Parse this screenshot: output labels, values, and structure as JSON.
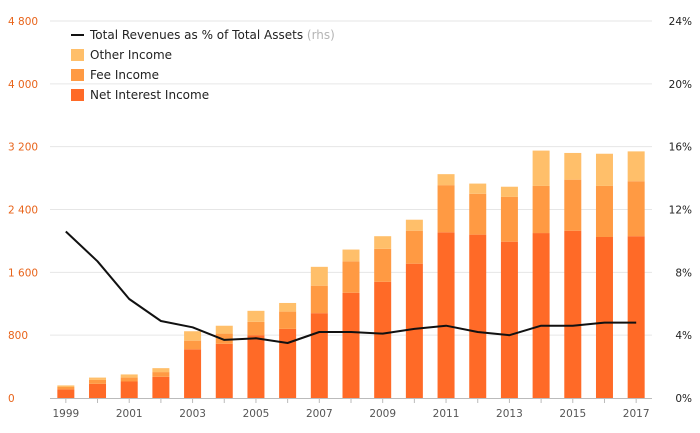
{
  "chart_data": {
    "type": "bar",
    "subtype": "stacked-bar-with-line",
    "x": [
      "1999",
      "2000",
      "2001",
      "2002",
      "2003",
      "2004",
      "2005",
      "2006",
      "2007",
      "2008",
      "2009",
      "2010",
      "2011",
      "2012",
      "2013",
      "2014",
      "2015",
      "2016",
      "2017"
    ],
    "x_tick_labels": [
      "1999",
      "2001",
      "2003",
      "2005",
      "2007",
      "2009",
      "2011",
      "2013",
      "2015",
      "2017"
    ],
    "series": [
      {
        "name": "Net Interest Income",
        "color": "#ff6a27",
        "axis": "left",
        "values": [
          110,
          180,
          210,
          270,
          620,
          690,
          800,
          880,
          1080,
          1340,
          1480,
          1710,
          2110,
          2080,
          1990,
          2100,
          2130,
          2050,
          2060
        ]
      },
      {
        "name": "Fee Income",
        "color": "#ff9a43",
        "axis": "left",
        "values": [
          30,
          50,
          50,
          60,
          110,
          130,
          170,
          220,
          350,
          400,
          420,
          420,
          600,
          520,
          570,
          600,
          650,
          650,
          700
        ]
      },
      {
        "name": "Other Income",
        "color": "#ffbf6a",
        "axis": "left",
        "values": [
          20,
          30,
          40,
          50,
          120,
          100,
          140,
          110,
          240,
          150,
          160,
          140,
          140,
          130,
          130,
          450,
          340,
          410,
          380
        ]
      },
      {
        "name": "Total Revenues as % of Total Assets",
        "name_suffix": "(rhs)",
        "type": "line",
        "color": "#111111",
        "axis": "right",
        "unit": "%",
        "values": [
          10.6,
          8.7,
          6.3,
          4.9,
          4.5,
          3.7,
          3.8,
          3.5,
          4.2,
          4.2,
          4.1,
          4.4,
          4.6,
          4.2,
          4.0,
          4.6,
          4.6,
          4.8,
          4.8
        ]
      }
    ],
    "y_left": {
      "ylim": [
        0,
        4800
      ],
      "ticks": [
        0,
        800,
        1600,
        2400,
        3200,
        4000,
        4800
      ],
      "tick_labels": [
        "0",
        "800",
        "1 600",
        "2 400",
        "3 200",
        "4 000",
        "4 800"
      ],
      "tick_color": "#e8641b"
    },
    "y_right": {
      "ylim": [
        0,
        24
      ],
      "ticks": [
        0,
        4,
        8,
        12,
        16,
        20,
        24
      ],
      "tick_labels": [
        "0%",
        "4%",
        "8%",
        "12%",
        "16%",
        "20%",
        "24%"
      ]
    },
    "grid": "horizontal",
    "legend_position": "top-left",
    "legend_order": [
      "Total Revenues as % of Total Assets",
      "Other Income",
      "Fee Income",
      "Net Interest Income"
    ]
  }
}
